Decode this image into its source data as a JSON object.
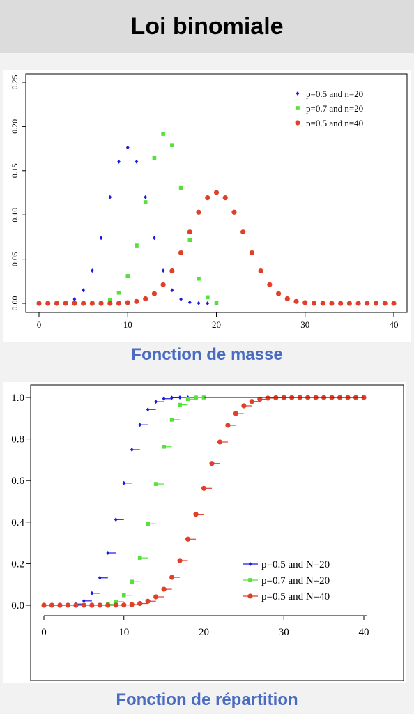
{
  "header": {
    "title": "Loi binomiale"
  },
  "captions": {
    "mass": "Fonction de masse",
    "cdf": "Fonction de répartition"
  },
  "colors": {
    "blue": "#1a1ae0",
    "green": "#55e03a",
    "red": "#e0402a"
  },
  "chart_data": [
    {
      "type": "scatter",
      "title": "",
      "xlabel": "",
      "ylabel": "",
      "xlim": [
        0,
        40
      ],
      "ylim": [
        0,
        0.25
      ],
      "x_ticks": [
        0,
        10,
        20,
        30,
        40
      ],
      "x_tick_labels": [
        "0",
        "10",
        "20",
        "30",
        "40"
      ],
      "y_ticks": [
        0.0,
        0.05,
        0.1,
        0.15,
        0.2,
        0.25
      ],
      "y_tick_labels": [
        "0.00",
        "0.05",
        "0.10",
        "0.15",
        "0.20",
        "0.25"
      ],
      "legend_position": "top-right",
      "series": [
        {
          "name": "p=0.5 and n=20",
          "color": "#1a1ae0",
          "marker": "diamond",
          "x": [
            0,
            1,
            2,
            3,
            4,
            5,
            6,
            7,
            8,
            9,
            10,
            11,
            12,
            13,
            14,
            15,
            16,
            17,
            18,
            19,
            20
          ],
          "values": [
            0,
            0,
            0.0002,
            0.0011,
            0.0046,
            0.0148,
            0.037,
            0.0739,
            0.1201,
            0.1602,
            0.1762,
            0.1602,
            0.1201,
            0.0739,
            0.037,
            0.0148,
            0.0046,
            0.0011,
            0.0002,
            0,
            0
          ]
        },
        {
          "name": "p=0.7 and n=20",
          "color": "#55e03a",
          "marker": "square",
          "x": [
            0,
            1,
            2,
            3,
            4,
            5,
            6,
            7,
            8,
            9,
            10,
            11,
            12,
            13,
            14,
            15,
            16,
            17,
            18,
            19,
            20
          ],
          "values": [
            0,
            0,
            0,
            0,
            0,
            0,
            0.0002,
            0.001,
            0.0039,
            0.012,
            0.0308,
            0.0654,
            0.1144,
            0.1643,
            0.1916,
            0.1789,
            0.1304,
            0.0716,
            0.0278,
            0.0068,
            0.0008
          ]
        },
        {
          "name": "p=0.5 and n=40",
          "color": "#e0402a",
          "marker": "circle",
          "x": [
            0,
            1,
            2,
            3,
            4,
            5,
            6,
            7,
            8,
            9,
            10,
            11,
            12,
            13,
            14,
            15,
            16,
            17,
            18,
            19,
            20,
            21,
            22,
            23,
            24,
            25,
            26,
            27,
            28,
            29,
            30,
            31,
            32,
            33,
            34,
            35,
            36,
            37,
            38,
            39,
            40
          ],
          "values": [
            0,
            0,
            0,
            0,
            0,
            0,
            0,
            0,
            0,
            0,
            0.0008,
            0.0021,
            0.0051,
            0.0109,
            0.0211,
            0.0366,
            0.0572,
            0.0807,
            0.1031,
            0.1194,
            0.1254,
            0.1194,
            0.1031,
            0.0807,
            0.0572,
            0.0366,
            0.0211,
            0.0109,
            0.0051,
            0.0021,
            0.0008,
            0,
            0,
            0,
            0,
            0,
            0,
            0,
            0,
            0,
            0
          ]
        }
      ]
    },
    {
      "type": "step",
      "title": "",
      "xlabel": "",
      "ylabel": "",
      "xlim": [
        0,
        40
      ],
      "ylim": [
        0,
        1.0
      ],
      "x_ticks": [
        0,
        10,
        20,
        30,
        40
      ],
      "x_tick_labels": [
        "0",
        "10",
        "20",
        "30",
        "40"
      ],
      "y_ticks": [
        0.0,
        0.2,
        0.4,
        0.6,
        0.8,
        1.0
      ],
      "y_tick_labels": [
        "0.0",
        "0.2",
        "0.4",
        "0.6",
        "0.8",
        "1.0"
      ],
      "legend_position": "bottom-right",
      "series": [
        {
          "name": "p=0.5 and N=20",
          "color": "#1a1ae0",
          "marker": "diamond",
          "x": [
            0,
            1,
            2,
            3,
            4,
            5,
            6,
            7,
            8,
            9,
            10,
            11,
            12,
            13,
            14,
            15,
            16,
            17,
            18,
            19,
            20
          ],
          "values": [
            0,
            0,
            0,
            0.0013,
            0.0059,
            0.0207,
            0.0577,
            0.1316,
            0.2517,
            0.4119,
            0.5881,
            0.7483,
            0.8684,
            0.9423,
            0.9793,
            0.9941,
            0.9987,
            0.9998,
            1,
            1,
            1
          ]
        },
        {
          "name": "p=0.7 and N=20",
          "color": "#55e03a",
          "marker": "square",
          "x": [
            0,
            1,
            2,
            3,
            4,
            5,
            6,
            7,
            8,
            9,
            10,
            11,
            12,
            13,
            14,
            15,
            16,
            17,
            18,
            19,
            20
          ],
          "values": [
            0,
            0,
            0,
            0,
            0,
            0,
            0.0003,
            0.0013,
            0.0051,
            0.0171,
            0.048,
            0.1133,
            0.2277,
            0.392,
            0.5836,
            0.7625,
            0.8929,
            0.9645,
            0.9924,
            0.9992,
            1
          ]
        },
        {
          "name": "p=0.5 and N=40",
          "color": "#e0402a",
          "marker": "circle",
          "x": [
            0,
            1,
            2,
            3,
            4,
            5,
            6,
            7,
            8,
            9,
            10,
            11,
            12,
            13,
            14,
            15,
            16,
            17,
            18,
            19,
            20,
            21,
            22,
            23,
            24,
            25,
            26,
            27,
            28,
            29,
            30,
            31,
            32,
            33,
            34,
            35,
            36,
            37,
            38,
            39,
            40
          ],
          "values": [
            0,
            0,
            0,
            0,
            0,
            0,
            0,
            0,
            0.0001,
            0.0003,
            0.0011,
            0.0032,
            0.0083,
            0.0192,
            0.0403,
            0.0769,
            0.1341,
            0.2148,
            0.3179,
            0.4373,
            0.5627,
            0.6821,
            0.7852,
            0.8659,
            0.9231,
            0.9597,
            0.9808,
            0.9917,
            0.9968,
            0.9989,
            0.9997,
            0.9999,
            1,
            1,
            1,
            1,
            1,
            1,
            1,
            1,
            1
          ]
        }
      ]
    }
  ]
}
